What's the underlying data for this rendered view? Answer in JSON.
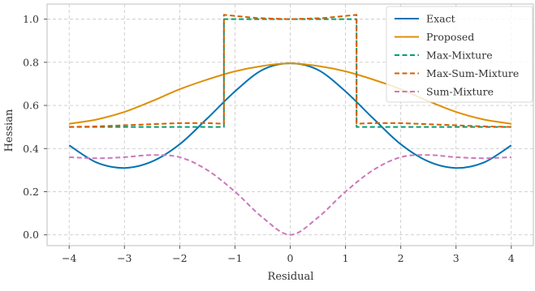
{
  "chart_data": {
    "type": "line",
    "title": "",
    "xlabel": "Residual",
    "ylabel": "Hessian",
    "xlim": [
      -4.4,
      4.4
    ],
    "ylim": [
      -0.05,
      1.07
    ],
    "grid": true,
    "legend_position": "top-right",
    "x_ticks": [
      -4,
      -3,
      -2,
      -1,
      0,
      1,
      2,
      3,
      4
    ],
    "x_tick_labels": [
      "−4",
      "−3",
      "−2",
      "−1",
      "0",
      "1",
      "2",
      "3",
      "4"
    ],
    "y_ticks": [
      0.0,
      0.2,
      0.4,
      0.6,
      0.8,
      1.0
    ],
    "y_tick_labels": [
      "0.0",
      "0.2",
      "0.4",
      "0.6",
      "0.8",
      "1.0"
    ],
    "series": [
      {
        "name": "Exact",
        "color": "#0173b2",
        "style": "solid",
        "x": [
          -4,
          -3.5,
          -3,
          -2.5,
          -2,
          -1.5,
          -1,
          -0.5,
          0,
          0.5,
          1,
          1.5,
          2,
          2.5,
          3,
          3.5,
          4
        ],
        "y": [
          0.415,
          0.335,
          0.31,
          0.34,
          0.42,
          0.54,
          0.665,
          0.765,
          0.795,
          0.765,
          0.665,
          0.54,
          0.42,
          0.34,
          0.31,
          0.335,
          0.415
        ]
      },
      {
        "name": "Proposed",
        "color": "#de8f05",
        "style": "solid",
        "x": [
          -4,
          -3.5,
          -3,
          -2.5,
          -2,
          -1.5,
          -1,
          -0.5,
          0,
          0.5,
          1,
          1.5,
          2,
          2.5,
          3,
          3.5,
          4
        ],
        "y": [
          0.515,
          0.535,
          0.57,
          0.62,
          0.675,
          0.72,
          0.758,
          0.783,
          0.795,
          0.783,
          0.758,
          0.72,
          0.675,
          0.62,
          0.57,
          0.535,
          0.515
        ]
      },
      {
        "name": "Max-Mixture",
        "color": "#029e73",
        "style": "dashed",
        "x": [
          -4,
          -3,
          -2,
          -1.2,
          -1.2,
          -0.6,
          0,
          0.6,
          1.2,
          1.2,
          2,
          3,
          4
        ],
        "y": [
          0.5,
          0.5,
          0.5,
          0.5,
          1.0,
          1.0,
          1.0,
          1.0,
          1.0,
          0.5,
          0.5,
          0.5,
          0.5
        ]
      },
      {
        "name": "Max-Sum-Mixture",
        "color": "#d55e00",
        "style": "dashed",
        "x": [
          -4,
          -3.5,
          -3,
          -2.5,
          -2,
          -1.5,
          -1.2,
          -1.2,
          -0.6,
          0,
          0.6,
          1.2,
          1.2,
          1.5,
          2,
          2.5,
          3,
          3.5,
          4
        ],
        "y": [
          0.5,
          0.503,
          0.508,
          0.513,
          0.518,
          0.518,
          0.515,
          1.02,
          1.005,
          1.0,
          1.005,
          1.02,
          0.515,
          0.518,
          0.518,
          0.513,
          0.508,
          0.503,
          0.5
        ]
      },
      {
        "name": "Sum-Mixture",
        "color": "#cc78bc",
        "style": "dashed",
        "x": [
          -4,
          -3.5,
          -3,
          -2.5,
          -2,
          -1.5,
          -1,
          -0.5,
          0,
          0.5,
          1,
          1.5,
          2,
          2.5,
          3,
          3.5,
          4
        ],
        "y": [
          0.36,
          0.355,
          0.36,
          0.37,
          0.36,
          0.3,
          0.2,
          0.08,
          0.0,
          0.08,
          0.2,
          0.3,
          0.36,
          0.37,
          0.36,
          0.355,
          0.36
        ]
      }
    ]
  }
}
